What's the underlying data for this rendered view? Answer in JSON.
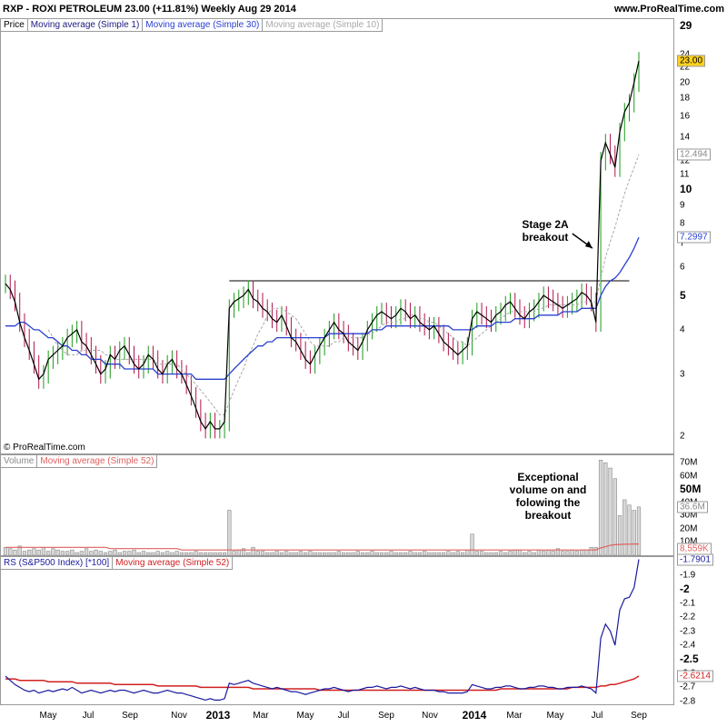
{
  "header": {
    "title": "RXP - ROXI PETROLEUM     23.00 (+11.81%)     Weekly  Aug 29 2014",
    "site": "www.ProRealTime.com"
  },
  "price_legend": [
    "Price",
    "Moving average (Simple 1)",
    "Moving average (Simple 30)",
    "Moving average (Simple 10)"
  ],
  "volume_legend": [
    "Volume",
    "Moving average (Simple 52)"
  ],
  "rs_legend": [
    "RS (S&P500 Index) [*100]",
    "Moving average (Simple 52)"
  ],
  "copyright": "© ProRealTime.com",
  "annotations": {
    "stage2a_line1": "Stage 2A",
    "stage2a_line2": "breakout",
    "vol_line1": "Exceptional",
    "vol_line2": "volume on and",
    "vol_line3": "folowing the",
    "vol_line4": "breakout"
  },
  "price_axis": {
    "ticks": [
      {
        "label": "29",
        "major": true
      },
      {
        "label": "24",
        "major": false
      },
      {
        "label": "22",
        "major": false
      },
      {
        "label": "20",
        "major": false
      },
      {
        "label": "18",
        "major": false
      },
      {
        "label": "16",
        "major": false
      },
      {
        "label": "14",
        "major": false
      },
      {
        "label": "12",
        "major": false
      },
      {
        "label": "11",
        "major": false
      },
      {
        "label": "10",
        "major": true
      },
      {
        "label": "9",
        "major": false
      },
      {
        "label": "8",
        "major": false
      },
      {
        "label": "7",
        "major": false
      },
      {
        "label": "6",
        "major": false
      },
      {
        "label": "5",
        "major": true
      },
      {
        "label": "4",
        "major": false
      },
      {
        "label": "3",
        "major": false
      },
      {
        "label": "2",
        "major": false
      }
    ],
    "badges": {
      "price": "23.00",
      "ma10": "12.494",
      "ma30": "7.2997"
    }
  },
  "volume_axis": {
    "ticks": [
      {
        "label": "70M",
        "major": false
      },
      {
        "label": "60M",
        "major": false
      },
      {
        "label": "50M",
        "major": true
      },
      {
        "label": "40M",
        "major": false
      },
      {
        "label": "30M",
        "major": false
      },
      {
        "label": "20M",
        "major": false
      },
      {
        "label": "10M",
        "major": false
      }
    ],
    "badges": {
      "vol": "36.6M",
      "ma52": "8,559K"
    }
  },
  "rs_axis": {
    "ticks": [
      {
        "label": "-1.9",
        "major": false
      },
      {
        "label": "-2",
        "major": true
      },
      {
        "label": "-2.1",
        "major": false
      },
      {
        "label": "-2.2",
        "major": false
      },
      {
        "label": "-2.3",
        "major": false
      },
      {
        "label": "-2.4",
        "major": false
      },
      {
        "label": "-2.5",
        "major": true
      },
      {
        "label": "-2.6",
        "major": false
      },
      {
        "label": "-2.7",
        "major": false
      },
      {
        "label": "-2.8",
        "major": false
      }
    ],
    "badges": {
      "rs": "-1.7901",
      "ma52": "-2.6214"
    }
  },
  "x_axis": [
    {
      "label": "May",
      "major": false
    },
    {
      "label": "Jul",
      "major": false
    },
    {
      "label": "Sep",
      "major": false
    },
    {
      "label": "Nov",
      "major": false
    },
    {
      "label": "2013",
      "major": true
    },
    {
      "label": "Mar",
      "major": false
    },
    {
      "label": "May",
      "major": false
    },
    {
      "label": "Jul",
      "major": false
    },
    {
      "label": "Sep",
      "major": false
    },
    {
      "label": "Nov",
      "major": false
    },
    {
      "label": "2014",
      "major": true
    },
    {
      "label": "Mar",
      "major": false
    },
    {
      "label": "May",
      "major": false
    },
    {
      "label": "Jul",
      "major": false
    },
    {
      "label": "Sep",
      "major": false
    }
  ],
  "colors": {
    "up": "#1a9a1a",
    "down": "#b0154a",
    "close_line": "#000000",
    "ma30": "#2a40d0",
    "ma10": "#a8a8a8",
    "rs": "#1a1aa0",
    "rs_ma": "#d02020",
    "volume": "#8a8a8a",
    "vol_ma": "#e06060",
    "badge_price": "#ffd21e"
  },
  "chart_data": {
    "type": "line",
    "price_scale": "log",
    "price_range": [
      1.8,
      30
    ],
    "resistance_level": 5.5,
    "close": [
      5.4,
      5.2,
      4.8,
      4.2,
      3.8,
      3.5,
      3.2,
      2.9,
      3.0,
      3.3,
      3.4,
      3.5,
      3.6,
      3.8,
      3.9,
      4.0,
      3.7,
      3.6,
      3.4,
      3.2,
      3.0,
      3.1,
      3.4,
      3.3,
      3.5,
      3.6,
      3.4,
      3.2,
      3.1,
      3.2,
      3.4,
      3.3,
      3.1,
      3.0,
      3.2,
      3.3,
      3.1,
      3.0,
      2.8,
      2.6,
      2.4,
      2.2,
      2.1,
      2.2,
      2.1,
      2.1,
      2.2,
      4.6,
      4.8,
      4.9,
      5.0,
      5.2,
      4.9,
      4.8,
      4.6,
      4.5,
      4.3,
      4.2,
      4.4,
      4.1,
      3.8,
      3.7,
      3.5,
      3.3,
      3.2,
      3.4,
      3.6,
      3.8,
      4.0,
      4.2,
      4.0,
      3.9,
      3.7,
      3.6,
      3.5,
      3.7,
      4.0,
      4.2,
      4.4,
      4.5,
      4.4,
      4.3,
      4.4,
      4.6,
      4.5,
      4.3,
      4.4,
      4.2,
      4.1,
      4.0,
      4.1,
      3.9,
      3.7,
      3.6,
      3.5,
      3.4,
      3.5,
      3.6,
      4.3,
      4.5,
      4.4,
      4.3,
      4.2,
      4.4,
      4.5,
      4.7,
      4.8,
      4.6,
      4.4,
      4.3,
      4.5,
      4.6,
      4.8,
      5.0,
      4.9,
      4.8,
      4.7,
      4.6,
      4.7,
      4.8,
      4.9,
      5.1,
      5.0,
      4.8,
      4.2,
      12.0,
      13.5,
      12.5,
      11.5,
      14.5,
      16.5,
      17.5,
      20.0,
      23.0
    ],
    "ma30": [
      4.1,
      4.1,
      4.1,
      4.2,
      4.2,
      4.1,
      4.0,
      4.0,
      3.9,
      3.8,
      3.8,
      3.7,
      3.6,
      3.6,
      3.5,
      3.5,
      3.4,
      3.4,
      3.3,
      3.3,
      3.3,
      3.2,
      3.2,
      3.2,
      3.2,
      3.1,
      3.1,
      3.1,
      3.1,
      3.1,
      3.1,
      3.1,
      3.0,
      3.0,
      3.0,
      3.0,
      3.0,
      3.0,
      3.0,
      3.0,
      2.9,
      2.9,
      2.9,
      2.9,
      2.9,
      2.9,
      2.9,
      3.0,
      3.1,
      3.2,
      3.3,
      3.4,
      3.5,
      3.6,
      3.6,
      3.7,
      3.7,
      3.8,
      3.8,
      3.8,
      3.8,
      3.8,
      3.8,
      3.8,
      3.8,
      3.8,
      3.8,
      3.8,
      3.9,
      3.9,
      3.9,
      3.9,
      3.9,
      3.9,
      3.9,
      3.9,
      3.9,
      4.0,
      4.0,
      4.0,
      4.1,
      4.1,
      4.1,
      4.1,
      4.1,
      4.1,
      4.1,
      4.1,
      4.1,
      4.1,
      4.1,
      4.1,
      4.1,
      4.1,
      4.0,
      4.0,
      4.0,
      4.0,
      4.0,
      4.1,
      4.1,
      4.1,
      4.1,
      4.2,
      4.2,
      4.2,
      4.2,
      4.3,
      4.3,
      4.3,
      4.3,
      4.3,
      4.4,
      4.4,
      4.4,
      4.4,
      4.4,
      4.5,
      4.5,
      4.5,
      4.5,
      4.6,
      4.6,
      4.6,
      4.6,
      5.0,
      5.3,
      5.5,
      5.6,
      5.8,
      6.1,
      6.4,
      6.8,
      7.3
    ],
    "ma10": [
      null,
      null,
      null,
      null,
      null,
      null,
      null,
      null,
      null,
      4.0,
      3.8,
      3.6,
      3.5,
      3.4,
      3.4,
      3.4,
      3.5,
      3.5,
      3.5,
      3.5,
      3.5,
      3.4,
      3.4,
      3.3,
      3.3,
      3.3,
      3.3,
      3.3,
      3.3,
      3.3,
      3.3,
      3.3,
      3.2,
      3.2,
      3.2,
      3.2,
      3.2,
      3.1,
      3.0,
      2.9,
      2.8,
      2.7,
      2.6,
      2.5,
      2.4,
      2.3,
      2.3,
      2.5,
      2.7,
      2.9,
      3.1,
      3.4,
      3.6,
      3.9,
      4.1,
      4.4,
      4.6,
      4.6,
      4.6,
      4.5,
      4.4,
      4.3,
      4.1,
      3.9,
      3.7,
      3.6,
      3.6,
      3.6,
      3.6,
      3.7,
      3.7,
      3.8,
      3.8,
      3.8,
      3.8,
      3.8,
      3.9,
      3.9,
      4.0,
      4.1,
      4.2,
      4.2,
      4.2,
      4.3,
      4.3,
      4.4,
      4.4,
      4.3,
      4.3,
      4.2,
      4.2,
      4.1,
      4.0,
      3.9,
      3.8,
      3.7,
      3.7,
      3.6,
      3.7,
      3.8,
      3.9,
      4.0,
      4.1,
      4.2,
      4.3,
      4.4,
      4.5,
      4.5,
      4.5,
      4.5,
      4.5,
      4.5,
      4.6,
      4.6,
      4.7,
      4.7,
      4.7,
      4.7,
      4.7,
      4.7,
      4.7,
      4.8,
      4.8,
      4.8,
      4.8,
      5.6,
      6.4,
      7.1,
      7.8,
      8.7,
      9.7,
      10.6,
      11.5,
      12.5
    ],
    "volume_range": [
      0,
      75
    ],
    "volume": [
      6,
      5,
      4,
      7,
      3,
      4,
      5,
      4,
      6,
      3,
      5,
      4,
      3,
      3,
      4,
      2,
      3,
      5,
      3,
      4,
      3,
      2,
      3,
      4,
      2,
      3,
      3,
      4,
      2,
      3,
      2,
      2,
      3,
      2,
      3,
      2,
      3,
      2,
      2,
      2,
      3,
      2,
      2,
      2,
      2,
      2,
      2,
      34,
      3,
      4,
      5,
      2,
      6,
      3,
      3,
      2,
      2,
      3,
      2,
      3,
      2,
      2,
      3,
      2,
      3,
      2,
      2,
      2,
      2,
      2,
      3,
      2,
      2,
      2,
      3,
      2,
      2,
      3,
      2,
      2,
      2,
      3,
      2,
      2,
      2,
      3,
      2,
      2,
      3,
      2,
      2,
      2,
      2,
      3,
      2,
      3,
      2,
      4,
      16,
      3,
      3,
      2,
      2,
      2,
      3,
      2,
      3,
      4,
      4,
      2,
      3,
      2,
      4,
      3,
      4,
      3,
      5,
      3,
      3,
      4,
      3,
      4,
      4,
      6,
      6,
      72,
      70,
      66,
      58,
      30,
      42,
      38,
      34,
      36.6
    ],
    "volume_ma52": [
      6,
      6,
      6,
      6,
      6,
      6,
      6,
      6,
      6,
      6,
      6,
      6,
      6,
      6,
      6,
      6,
      6,
      6,
      6,
      6,
      6,
      6,
      5,
      5,
      5,
      5,
      5,
      5,
      5,
      5,
      5,
      5,
      5,
      5,
      5,
      5,
      5,
      4,
      4,
      4,
      4,
      4,
      4,
      4,
      4,
      4,
      4,
      4,
      4,
      4,
      4,
      4,
      4,
      4,
      4,
      4,
      4,
      4,
      4,
      4,
      4,
      4,
      4,
      4,
      4,
      4,
      4,
      4,
      4,
      4,
      4,
      4,
      4,
      4,
      4,
      4,
      4,
      4,
      4,
      4,
      4,
      4,
      4,
      4,
      4,
      4,
      4,
      4,
      4,
      4,
      4,
      4,
      4,
      4,
      4,
      4,
      4,
      4,
      4,
      4,
      4,
      4,
      4,
      4,
      4,
      4,
      4,
      4,
      4,
      4,
      4,
      4,
      4,
      4,
      4,
      4,
      4,
      4,
      4,
      4,
      4,
      4,
      4,
      4,
      4,
      5.5,
      6.5,
      7.5,
      8,
      8.2,
      8.3,
      8.4,
      8.5,
      8.56
    ],
    "rs_range": [
      -2.82,
      -1.78
    ],
    "rs": [
      -2.62,
      -2.65,
      -2.68,
      -2.7,
      -2.72,
      -2.73,
      -2.72,
      -2.74,
      -2.73,
      -2.72,
      -2.73,
      -2.72,
      -2.71,
      -2.72,
      -2.7,
      -2.72,
      -2.74,
      -2.73,
      -2.72,
      -2.73,
      -2.74,
      -2.73,
      -2.72,
      -2.73,
      -2.72,
      -2.72,
      -2.73,
      -2.74,
      -2.73,
      -2.72,
      -2.73,
      -2.74,
      -2.74,
      -2.73,
      -2.72,
      -2.73,
      -2.74,
      -2.74,
      -2.75,
      -2.76,
      -2.77,
      -2.78,
      -2.79,
      -2.78,
      -2.79,
      -2.79,
      -2.78,
      -2.67,
      -2.68,
      -2.67,
      -2.66,
      -2.65,
      -2.67,
      -2.68,
      -2.69,
      -2.7,
      -2.71,
      -2.7,
      -2.71,
      -2.72,
      -2.73,
      -2.73,
      -2.74,
      -2.75,
      -2.74,
      -2.73,
      -2.72,
      -2.71,
      -2.71,
      -2.7,
      -2.71,
      -2.72,
      -2.73,
      -2.72,
      -2.72,
      -2.71,
      -2.7,
      -2.7,
      -2.69,
      -2.7,
      -2.71,
      -2.7,
      -2.7,
      -2.69,
      -2.7,
      -2.71,
      -2.7,
      -2.71,
      -2.72,
      -2.72,
      -2.72,
      -2.73,
      -2.73,
      -2.74,
      -2.74,
      -2.74,
      -2.74,
      -2.73,
      -2.68,
      -2.69,
      -2.7,
      -2.71,
      -2.71,
      -2.7,
      -2.7,
      -2.69,
      -2.69,
      -2.7,
      -2.71,
      -2.71,
      -2.7,
      -2.7,
      -2.69,
      -2.69,
      -2.7,
      -2.7,
      -2.71,
      -2.71,
      -2.7,
      -2.7,
      -2.7,
      -2.69,
      -2.7,
      -2.71,
      -2.74,
      -2.35,
      -2.25,
      -2.3,
      -2.4,
      -2.15,
      -2.07,
      -2.06,
      -1.99,
      -1.79
    ],
    "rs_ma52": [
      -2.64,
      -2.64,
      -2.64,
      -2.65,
      -2.65,
      -2.65,
      -2.65,
      -2.65,
      -2.65,
      -2.66,
      -2.66,
      -2.66,
      -2.66,
      -2.66,
      -2.66,
      -2.67,
      -2.67,
      -2.67,
      -2.67,
      -2.67,
      -2.67,
      -2.67,
      -2.67,
      -2.68,
      -2.68,
      -2.68,
      -2.68,
      -2.68,
      -2.68,
      -2.68,
      -2.68,
      -2.68,
      -2.69,
      -2.69,
      -2.69,
      -2.69,
      -2.69,
      -2.69,
      -2.69,
      -2.69,
      -2.69,
      -2.7,
      -2.7,
      -2.7,
      -2.7,
      -2.7,
      -2.7,
      -2.7,
      -2.7,
      -2.7,
      -2.7,
      -2.7,
      -2.71,
      -2.71,
      -2.71,
      -2.71,
      -2.71,
      -2.71,
      -2.71,
      -2.71,
      -2.71,
      -2.71,
      -2.71,
      -2.71,
      -2.71,
      -2.71,
      -2.72,
      -2.72,
      -2.72,
      -2.72,
      -2.72,
      -2.72,
      -2.72,
      -2.72,
      -2.72,
      -2.72,
      -2.72,
      -2.72,
      -2.72,
      -2.72,
      -2.72,
      -2.72,
      -2.72,
      -2.72,
      -2.72,
      -2.72,
      -2.72,
      -2.72,
      -2.72,
      -2.72,
      -2.72,
      -2.72,
      -2.72,
      -2.72,
      -2.72,
      -2.72,
      -2.72,
      -2.72,
      -2.72,
      -2.72,
      -2.72,
      -2.72,
      -2.72,
      -2.72,
      -2.71,
      -2.71,
      -2.71,
      -2.71,
      -2.71,
      -2.71,
      -2.71,
      -2.71,
      -2.71,
      -2.71,
      -2.71,
      -2.71,
      -2.71,
      -2.71,
      -2.71,
      -2.7,
      -2.7,
      -2.7,
      -2.7,
      -2.7,
      -2.7,
      -2.69,
      -2.69,
      -2.68,
      -2.68,
      -2.67,
      -2.66,
      -2.65,
      -2.64,
      -2.62
    ]
  }
}
